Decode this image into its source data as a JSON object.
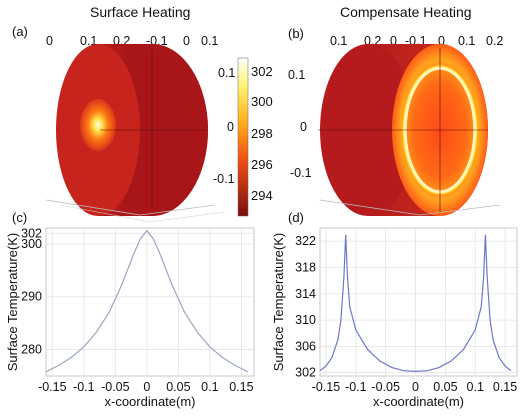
{
  "panels": {
    "a": {
      "tag": "(a)",
      "title": "Surface Heating",
      "ticks_top": [
        "0",
        "0.1",
        "0.2",
        "-0.1",
        "0",
        "0.1"
      ],
      "ticks_right": [
        "0.1",
        "0",
        "-0.1"
      ],
      "colorbar": [
        "302",
        "300",
        "298",
        "296",
        "294"
      ]
    },
    "b": {
      "tag": "(b)",
      "title": "Compensate Heating",
      "ticks_top": [
        "0.1",
        "0.2",
        "0",
        "-0.1",
        "0",
        "0.1",
        "0.2"
      ],
      "ticks_left": [
        "0.1",
        "0",
        "-0.1"
      ]
    },
    "c": {
      "tag": "(c)"
    },
    "d": {
      "tag": "(d)"
    }
  },
  "colors": {
    "line": "#9aa6c2",
    "line_d": "#6b78c9",
    "grid": "#e3e3e3"
  },
  "chart_data": [
    {
      "type": "line",
      "panel": "c",
      "xlabel": "x-coordinate(m)",
      "ylabel": "Surface Temperature(K)",
      "xlim": [
        -0.16,
        0.17
      ],
      "ylim": [
        275,
        303
      ],
      "xticks": [
        "-0.15",
        "-0.1",
        "-0.05",
        "0",
        "0.05",
        "0.1",
        "0.15"
      ],
      "yticks": [
        "302",
        "300",
        "290",
        "280"
      ],
      "grid": true,
      "series": [
        {
          "x": [
            -0.16,
            -0.14,
            -0.12,
            -0.1,
            -0.08,
            -0.06,
            -0.04,
            -0.02,
            -0.01,
            0,
            0.01,
            0.02,
            0.04,
            0.06,
            0.08,
            0.1,
            0.12,
            0.14,
            0.16
          ],
          "y": [
            275.8,
            277.0,
            278.5,
            280.5,
            283.3,
            287.0,
            292.2,
            298.3,
            301.0,
            302.5,
            301.0,
            298.3,
            292.2,
            287.0,
            283.3,
            280.5,
            278.5,
            277.0,
            275.8
          ]
        }
      ]
    },
    {
      "type": "line",
      "panel": "d",
      "xlabel": "x-coordinate(m)",
      "ylabel": "Surface Temperature(K)",
      "xlim": [
        -0.16,
        0.17
      ],
      "ylim": [
        301.5,
        324
      ],
      "xticks": [
        "-0.15",
        "-0.1",
        "-0.05",
        "0",
        "0.05",
        "0.1",
        "0.15"
      ],
      "yticks": [
        "322",
        "318",
        "314",
        "310",
        "306",
        "302"
      ],
      "grid": true,
      "series": [
        {
          "x": [
            -0.16,
            -0.15,
            -0.14,
            -0.13,
            -0.125,
            -0.12,
            -0.117,
            -0.114,
            -0.11,
            -0.1,
            -0.08,
            -0.06,
            -0.04,
            -0.02,
            0,
            0.02,
            0.04,
            0.06,
            0.08,
            0.1,
            0.11,
            0.114,
            0.117,
            0.12,
            0.125,
            0.13,
            0.14,
            0.15,
            0.16
          ],
          "y": [
            302.3,
            303.0,
            304.3,
            307.0,
            310.0,
            316.5,
            323.0,
            316.5,
            312.0,
            308.5,
            305.5,
            303.8,
            302.8,
            302.3,
            302.2,
            302.3,
            302.8,
            303.8,
            305.5,
            308.5,
            312.0,
            316.5,
            323.0,
            316.5,
            310.0,
            307.0,
            304.3,
            303.0,
            302.3
          ]
        }
      ]
    }
  ]
}
